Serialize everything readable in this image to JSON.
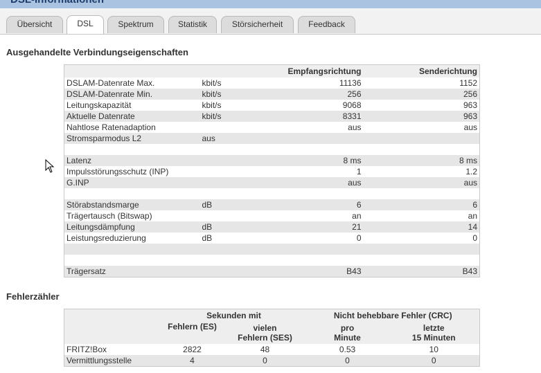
{
  "window": {
    "title": "DSL-Informationen"
  },
  "tabs": [
    "Übersicht",
    "DSL",
    "Spektrum",
    "Statistik",
    "Störsicherheit",
    "Feedback"
  ],
  "active_tab": "DSL",
  "connection": {
    "heading": "Ausgehandelte Verbindungseigenschaften",
    "col_rx": "Empfangsrichtung",
    "col_tx": "Senderichtung",
    "rows": [
      {
        "label": "DSLAM-Datenrate Max.",
        "unit": "kbit/s",
        "rx": "11136",
        "tx": "1152"
      },
      {
        "label": "DSLAM-Datenrate Min.",
        "unit": "kbit/s",
        "rx": "256",
        "tx": "256"
      },
      {
        "label": "Leitungskapazität",
        "unit": "kbit/s",
        "rx": "9068",
        "tx": "963"
      },
      {
        "label": "Aktuelle Datenrate",
        "unit": "kbit/s",
        "rx": "8331",
        "tx": "963"
      },
      {
        "label": "Nahtlose Ratenadaption",
        "unit": "",
        "rx": "aus",
        "tx": "aus"
      },
      {
        "label": "Stromsparmodus L2",
        "unit": "aus",
        "rx": "",
        "tx": ""
      },
      {
        "label": "",
        "unit": "",
        "rx": "",
        "tx": ""
      },
      {
        "label": "Latenz",
        "unit": "",
        "rx": "8 ms",
        "tx": "8 ms"
      },
      {
        "label": "Impulsstörungsschutz (INP)",
        "unit": "",
        "rx": "1",
        "tx": "1.2"
      },
      {
        "label": "G.INP",
        "unit": "",
        "rx": "aus",
        "tx": "aus"
      },
      {
        "label": "",
        "unit": "",
        "rx": "",
        "tx": ""
      },
      {
        "label": "Störabstandsmarge",
        "unit": "dB",
        "rx": "6",
        "tx": "6"
      },
      {
        "label": "Trägertausch (Bitswap)",
        "unit": "",
        "rx": "an",
        "tx": "an"
      },
      {
        "label": "Leitungsdämpfung",
        "unit": "dB",
        "rx": "21",
        "tx": "14"
      },
      {
        "label": "Leistungsreduzierung",
        "unit": "dB",
        "rx": "0",
        "tx": "0"
      },
      {
        "label": "",
        "unit": "",
        "rx": "",
        "tx": ""
      },
      {
        "label": "",
        "unit": "",
        "rx": "",
        "tx": ""
      },
      {
        "label": "Trägersatz",
        "unit": "",
        "rx": "B43",
        "tx": "B43"
      }
    ]
  },
  "errors": {
    "heading": "Fehlerzähler",
    "group_seconds": "Sekunden mit",
    "group_crc": "Nicht behebbare Fehler (CRC)",
    "col_es": "Fehlern (ES)",
    "col_ses_1": "vielen",
    "col_ses_2": "Fehlern (SES)",
    "col_min_1": "pro",
    "col_min_2": "Minute",
    "col_15_1": "letzte",
    "col_15_2": "15 Minuten",
    "rows": [
      {
        "label": "FRITZ!Box",
        "es": "2822",
        "ses": "48",
        "per_min": "0.53",
        "last15": "10"
      },
      {
        "label": "Vermittlungsstelle",
        "es": "4",
        "ses": "0",
        "per_min": "0",
        "last15": "0"
      }
    ]
  }
}
